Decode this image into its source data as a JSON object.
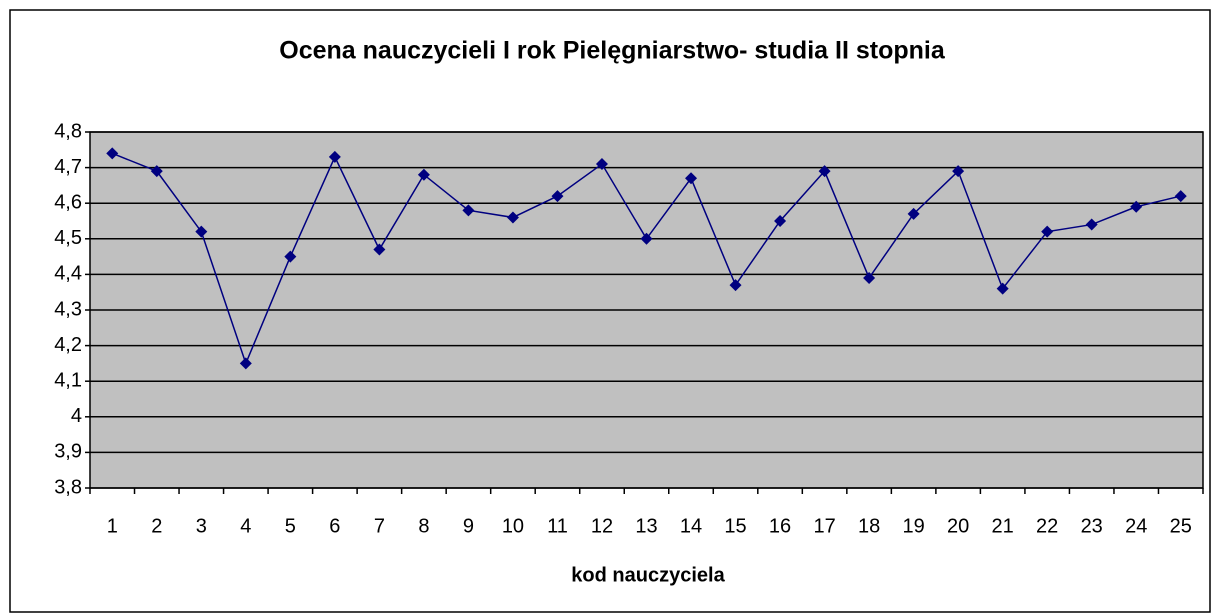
{
  "chart_data": {
    "type": "line",
    "title": "Ocena nauczycieli I rok Pielęgniarstwo- studia II stopnia",
    "xlabel": "kod nauczyciela",
    "categories": [
      "1",
      "2",
      "3",
      "4",
      "5",
      "6",
      "7",
      "8",
      "9",
      "10",
      "11",
      "12",
      "13",
      "14",
      "15",
      "16",
      "17",
      "18",
      "19",
      "20",
      "21",
      "22",
      "23",
      "24",
      "25"
    ],
    "series": [
      {
        "name": null,
        "color": "#000080",
        "values": [
          4.74,
          4.69,
          4.52,
          4.15,
          4.45,
          4.73,
          4.47,
          4.68,
          4.58,
          4.56,
          4.62,
          4.71,
          4.5,
          4.67,
          4.37,
          4.55,
          4.69,
          4.39,
          4.57,
          4.69,
          4.36,
          4.52,
          4.54,
          4.59,
          4.62
        ]
      }
    ],
    "ylim": [
      3.8,
      4.8
    ],
    "yticks": [
      {
        "value": 3.8,
        "label": "3,8"
      },
      {
        "value": 3.9,
        "label": "3,9"
      },
      4,
      {
        "value": 4.1,
        "label": "4,1"
      },
      {
        "value": 4.2,
        "label": "4,2"
      },
      {
        "value": 4.3,
        "label": "4,3"
      },
      {
        "value": 4.4,
        "label": "4,4"
      },
      {
        "value": 4.5,
        "label": "4,5"
      },
      {
        "value": 4.6,
        "label": "4,6"
      },
      {
        "value": 4.7,
        "label": "4,7"
      },
      {
        "value": 4.8,
        "label": "4,8"
      }
    ],
    "grid": true,
    "plot_background": "#c0c0c0"
  }
}
